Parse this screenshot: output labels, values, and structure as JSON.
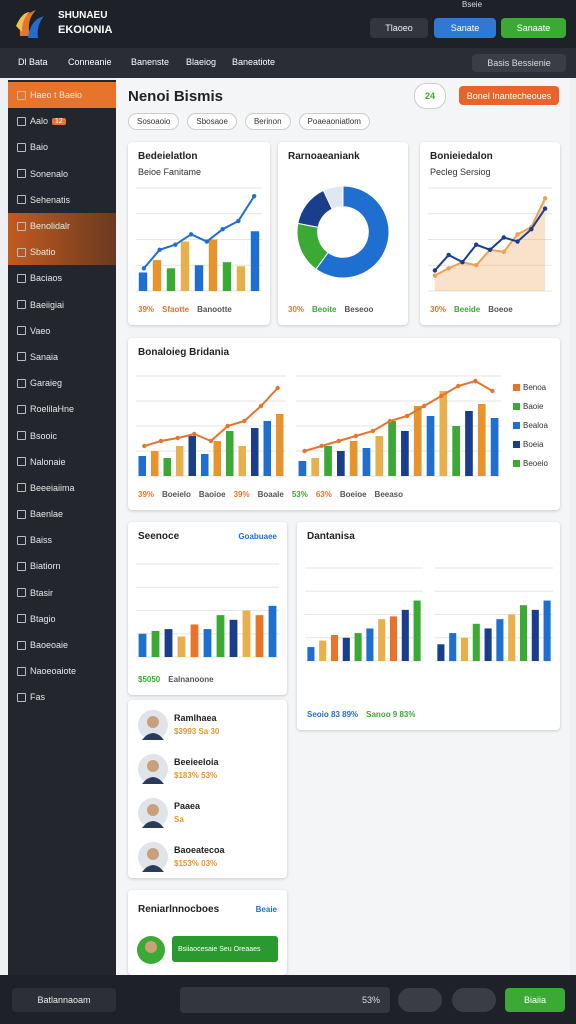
{
  "header": {
    "logo_line1": "SHUNAEU",
    "logo_line2": "EKOIONIA",
    "user": "Bseie",
    "search": "Tlaoeo",
    "button1": "Sanate",
    "button2": "Sanaate"
  },
  "nav": {
    "items": [
      "Dl Bata",
      "Conneanie",
      "Banenste",
      "Blaeiog",
      "Baneatiote"
    ],
    "account": "Basis Bessienie"
  },
  "sidebar": {
    "items": [
      "Haeo t Baeio",
      "Aalo",
      "Baio",
      "Sonenalo",
      "Sehenatis",
      "Benolidalr",
      "Sbatio",
      "Baciaos",
      "Baeiigiai",
      "Vaeo",
      "Sanaia",
      "Garaieg",
      "RoelilaHne",
      "Bsooic",
      "Nalonaie",
      "Beeeiaiima",
      "Baenlae",
      "Baiss",
      "Biatiorn",
      "Btasir",
      "Btagio",
      "Baoeoaie",
      "Naoeoaiote",
      "Fas"
    ],
    "active": 0,
    "highlight": [
      5,
      6
    ],
    "badge": {
      "item": 1,
      "text": "12"
    }
  },
  "main": {
    "title": "Nenoi Bismis",
    "counter": "24",
    "action": "Bonel Inantecheoues",
    "filters": [
      "Sosoaoio",
      "Sbosaoe",
      "Berinon",
      "Poaeaoniatlom"
    ]
  },
  "cards": [
    {
      "title": "Bedeielatlon",
      "subtitle": "Beioe Fanitame",
      "charts": [
        {
          "type": "bar",
          "ylim": [
            0,
            100
          ],
          "bar_values": [
            18,
            30,
            22,
            48,
            25,
            50,
            28,
            24,
            58
          ],
          "bar_colors": [
            "#1e6fd0",
            "#e8942c",
            "#3aaa35",
            "#e8b04c"
          ],
          "lines": [
            {
              "color": "#1e6fd0",
              "values": [
                22,
                40,
                45,
                55,
                48,
                60,
                68,
                92
              ]
            }
          ]
        }
      ],
      "footer": [
        {
          "text": "39%",
          "color": "#e8742c"
        },
        {
          "text": "Sfaotte",
          "color": "#e8742c"
        },
        {
          "text": "Banootte",
          "color": "#555555"
        }
      ]
    },
    {
      "title": "Rarnoaeaniank",
      "charts": [
        {
          "type": "donut",
          "values": [
            60,
            18,
            15,
            7
          ],
          "colors": [
            "#1e6fd0",
            "#3aaa35",
            "#1b3e8c",
            "#dfe7f2"
          ]
        }
      ],
      "footer": [
        {
          "text": "30%",
          "color": "#e8742c"
        },
        {
          "text": "Beoite",
          "color": "#3aaa35"
        },
        {
          "text": "Beseoo",
          "color": "#555555"
        }
      ]
    },
    {
      "title": "Bonieiedalon",
      "subtitle": "Pecleg Sersiog",
      "charts": [
        {
          "type": "area",
          "ylim": [
            0,
            100
          ],
          "lines": [
            {
              "color": "#f0a050",
              "values": [
                15,
                22,
                28,
                25,
                40,
                38,
                55,
                62,
                90
              ]
            },
            {
              "color": "#1b3e8c",
              "values": [
                20,
                35,
                28,
                45,
                40,
                52,
                48,
                60,
                80
              ]
            }
          ]
        }
      ],
      "footer": [
        {
          "text": "30%",
          "color": "#e8742c"
        },
        {
          "text": "Beeide",
          "color": "#3aaa35"
        },
        {
          "text": "Boeoe",
          "color": "#555555"
        }
      ]
    },
    {
      "title": "Bonaloieg Bridania",
      "charts": [
        {
          "type": "bar",
          "ylim": [
            0,
            100
          ],
          "bar_values": [
            20,
            25,
            18,
            30,
            40,
            22,
            35,
            45,
            30,
            48,
            55,
            62
          ],
          "bar_colors": [
            "#1e6fd0",
            "#e8942c",
            "#3aaa35",
            "#e8b04c",
            "#1b3e8c"
          ],
          "lines": [
            {
              "color": "#e8742c",
              "values": [
                30,
                35,
                38,
                42,
                35,
                50,
                55,
                70,
                88
              ]
            }
          ]
        },
        {
          "type": "bar",
          "ylim": [
            0,
            100
          ],
          "bar_values": [
            15,
            18,
            30,
            25,
            35,
            28,
            40,
            55,
            45,
            70,
            60,
            85,
            50,
            65,
            72,
            58
          ],
          "bar_colors": [
            "#1e6fd0",
            "#e8b04c",
            "#3aaa35",
            "#1b3e8c",
            "#e8942c"
          ],
          "lines": [
            {
              "color": "#e8742c",
              "values": [
                25,
                30,
                35,
                40,
                45,
                55,
                60,
                70,
                80,
                90,
                95,
                85
              ]
            }
          ]
        }
      ],
      "legend": [
        {
          "name": "Benoa",
          "color": "#e8742c"
        },
        {
          "name": "Baoie",
          "color": "#3aaa35"
        },
        {
          "name": "Bealoa",
          "color": "#1e6fd0"
        },
        {
          "name": "Boeia",
          "color": "#1b3e8c"
        },
        {
          "name": "Beoeio",
          "color": "#3aaa35"
        }
      ],
      "footer": [
        {
          "text": "39%",
          "color": "#e8742c"
        },
        {
          "text": "Boeielo",
          "color": "#555555"
        },
        {
          "text": "Baoioe",
          "color": "#555555"
        },
        {
          "text": "39%",
          "color": "#e8742c"
        },
        {
          "text": "Boaale",
          "color": "#555555"
        },
        {
          "text": "53%",
          "color": "#3aaa35"
        },
        {
          "text": "63%",
          "color": "#e8742c"
        },
        {
          "text": "Boeioe",
          "color": "#555555"
        },
        {
          "text": "Beeaso",
          "color": "#555555"
        }
      ]
    },
    {
      "title": "Seenoce",
      "link": "Goabuaee",
      "charts": [
        {
          "type": "bar",
          "ylim": [
            0,
            100
          ],
          "bar_values": [
            25,
            28,
            30,
            22,
            35,
            30,
            45,
            40,
            50,
            45,
            55
          ],
          "bar_colors": [
            "#1e6fd0",
            "#3aaa35",
            "#1b3e8c",
            "#e8b04c",
            "#e8742c"
          ]
        }
      ],
      "footer": [
        {
          "text": "$5050",
          "color": "#3aaa35"
        },
        {
          "text": "Ealnanoone",
          "color": "#555555"
        }
      ]
    },
    {
      "title": "Dantanisa",
      "charts": [
        {
          "type": "bar",
          "ylim": [
            0,
            100
          ],
          "bar_values": [
            15,
            22,
            28,
            25,
            30,
            35,
            45,
            48,
            55,
            65
          ],
          "bar_colors": [
            "#1e6fd0",
            "#e8b04c",
            "#e8742c",
            "#1b3e8c",
            "#3aaa35"
          ]
        },
        {
          "type": "bar",
          "ylim": [
            0,
            100
          ],
          "bar_values": [
            18,
            30,
            25,
            40,
            35,
            45,
            50,
            60,
            55,
            65
          ],
          "bar_colors": [
            "#1b3e8c",
            "#1e6fd0",
            "#e8b04c",
            "#3aaa35"
          ]
        }
      ],
      "footer": [
        {
          "text": "Seoio 83 89%",
          "color": "#1e6fd0"
        },
        {
          "text": "Sanoo 9 83%",
          "color": "#3aaa35"
        }
      ]
    }
  ],
  "people": [
    {
      "name": "Ramlhaea",
      "stat": "$3993 Sa 30"
    },
    {
      "name": "Beeieeloia",
      "stat": "$183% 53%"
    },
    {
      "name": "Paaea",
      "stat": "Sa"
    },
    {
      "name": "Baoeatecoa",
      "stat": "$153% 03%"
    }
  ],
  "promo": {
    "title": "Reniarlnnocboes",
    "link": "Beaie",
    "banner": "Bsiiaocesaie Seu Oreaaes"
  },
  "footer_bar": {
    "label": "Batlannaoam",
    "search": "53%",
    "button": "Biaiia"
  }
}
